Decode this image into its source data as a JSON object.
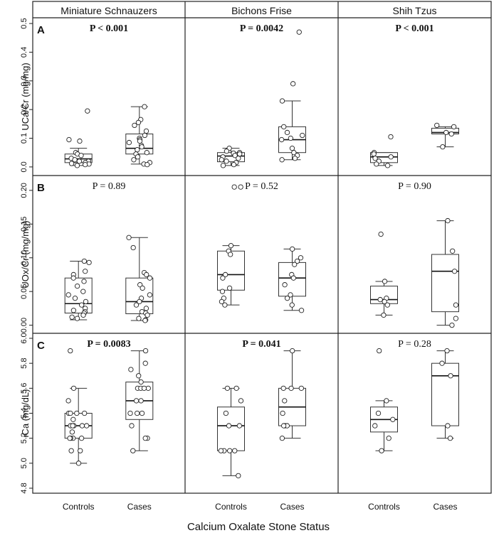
{
  "chart_data": {
    "type": "box",
    "xlabel": "Calcium Oxalate Stone Status",
    "columns": [
      "Miniature Schnauzers",
      "Bichons Frise",
      "Shih Tzus"
    ],
    "categories": [
      "Controls",
      "Cases"
    ],
    "rows": [
      {
        "letter": "A",
        "ylabel": "UCa/Cr (mg/mg)",
        "ylim": [
          -0.03,
          0.52
        ],
        "ticks": [
          0.0,
          0.1,
          0.2,
          0.3,
          0.4,
          0.5
        ],
        "tick_labels": [
          "0.0",
          "0.1",
          "0.2",
          "0.3",
          "0.4",
          "0.5"
        ],
        "panels": [
          {
            "p_label": "P < 0.001",
            "bold": true,
            "groups": [
              {
                "box": [
                  0.005,
                  0.015,
                  0.028,
                  0.045,
                  0.065
                ],
                "points": [
                  0.195,
                  0.095,
                  0.09,
                  0.05,
                  0.045,
                  0.04,
                  0.03,
                  0.025,
                  0.02,
                  0.02,
                  0.015,
                  0.012,
                  0.01,
                  0.008,
                  0.005
                ]
              },
              {
                "box": [
                  0.01,
                  0.045,
                  0.065,
                  0.115,
                  0.21
                ],
                "points": [
                  0.21,
                  0.165,
                  0.155,
                  0.145,
                  0.125,
                  0.11,
                  0.1,
                  0.095,
                  0.09,
                  0.085,
                  0.075,
                  0.07,
                  0.06,
                  0.05,
                  0.045,
                  0.035,
                  0.025,
                  0.015,
                  0.01,
                  0.008
                ]
              }
            ]
          },
          {
            "p_label": "P = 0.0042",
            "bold": true,
            "groups": [
              {
                "box": [
                  0.005,
                  0.018,
                  0.038,
                  0.05,
                  0.065
                ],
                "points": [
                  0.065,
                  0.055,
                  0.05,
                  0.048,
                  0.045,
                  0.04,
                  0.035,
                  0.03,
                  0.025,
                  0.02,
                  0.015,
                  0.008,
                  0.005
                ]
              },
              {
                "box": [
                  0.025,
                  0.05,
                  0.095,
                  0.14,
                  0.23
                ],
                "points": [
                  0.47,
                  0.29,
                  0.23,
                  0.14,
                  0.12,
                  0.11,
                  0.1,
                  0.095,
                  0.065,
                  0.05,
                  0.04,
                  0.03,
                  0.025
                ]
              }
            ]
          },
          {
            "p_label": "P < 0.001",
            "bold": true,
            "groups": [
              {
                "box": [
                  0.005,
                  0.015,
                  0.035,
                  0.05,
                  0.05
                ],
                "points": [
                  0.105,
                  0.05,
                  0.045,
                  0.035,
                  0.03,
                  0.02,
                  0.01,
                  0.005
                ]
              },
              {
                "box": [
                  0.07,
                  0.115,
                  0.12,
                  0.135,
                  0.14
                ],
                "points": [
                  0.145,
                  0.14,
                  0.12,
                  0.115,
                  0.07
                ]
              }
            ]
          }
        ]
      },
      {
        "letter": "B",
        "ylabel": "UOx/Cr (mg/mg)",
        "ylim": [
          -0.012,
          0.222
        ],
        "ticks": [
          0.0,
          0.05,
          0.1,
          0.15,
          0.2
        ],
        "tick_labels": [
          "0.00",
          "0.05",
          "0.10",
          "0.15",
          "0.20"
        ],
        "panels": [
          {
            "p_label": "P = 0.89",
            "bold": false,
            "groups": [
              {
                "box": [
                  0.008,
                  0.018,
                  0.032,
                  0.07,
                  0.095
                ],
                "points": [
                  0.095,
                  0.093,
                  0.08,
                  0.075,
                  0.07,
                  0.065,
                  0.058,
                  0.05,
                  0.045,
                  0.04,
                  0.035,
                  0.03,
                  0.025,
                  0.022,
                  0.02,
                  0.018,
                  0.015,
                  0.012,
                  0.01
                ]
              },
              {
                "box": [
                  0.007,
                  0.017,
                  0.035,
                  0.07,
                  0.13
                ],
                "points": [
                  0.13,
                  0.115,
                  0.078,
                  0.075,
                  0.07,
                  0.06,
                  0.055,
                  0.045,
                  0.04,
                  0.035,
                  0.03,
                  0.025,
                  0.02,
                  0.018,
                  0.015,
                  0.01,
                  0.008,
                  0.007
                ]
              }
            ]
          },
          {
            "p_label": "P = 0.52",
            "bold": false,
            "groups": [
              {
                "box": [
                  0.03,
                  0.052,
                  0.075,
                  0.11,
                  0.118
                ],
                "points": [
                  0.205,
                  0.205,
                  0.118,
                  0.11,
                  0.105,
                  0.075,
                  0.07,
                  0.055,
                  0.05,
                  0.04,
                  0.035,
                  0.03
                ]
              },
              {
                "box": [
                  0.022,
                  0.043,
                  0.07,
                  0.093,
                  0.113
                ],
                "points": [
                  0.113,
                  0.1,
                  0.095,
                  0.09,
                  0.075,
                  0.07,
                  0.06,
                  0.045,
                  0.04,
                  0.03,
                  0.022
                ]
              }
            ]
          },
          {
            "p_label": "P = 0.90",
            "bold": false,
            "groups": [
              {
                "box": [
                  0.015,
                  0.032,
                  0.038,
                  0.058,
                  0.065
                ],
                "points": [
                  0.135,
                  0.065,
                  0.04,
                  0.038,
                  0.035,
                  0.03,
                  0.015
                ]
              },
              {
                "box": [
                  0.0,
                  0.02,
                  0.08,
                  0.105,
                  0.155
                ],
                "points": [
                  0.155,
                  0.11,
                  0.08,
                  0.03,
                  0.01,
                  0.0
                ]
              }
            ]
          }
        ]
      },
      {
        "letter": "C",
        "ylabel": "iCa (mg/dL)",
        "ylim": [
          4.76,
          6.04
        ],
        "ticks": [
          4.8,
          5.0,
          5.2,
          5.4,
          5.6,
          5.8,
          6.0
        ],
        "tick_labels": [
          "4.8",
          "5.0",
          "5.2",
          "5.4",
          "5.6",
          "5.8",
          "6.0"
        ],
        "panels": [
          {
            "p_label": "P = 0.0083",
            "bold": true,
            "groups": [
              {
                "box": [
                  5.0,
                  5.2,
                  5.3,
                  5.4,
                  5.6
                ],
                "points": [
                  5.9,
                  5.6,
                  5.5,
                  5.4,
                  5.4,
                  5.4,
                  5.4,
                  5.35,
                  5.3,
                  5.3,
                  5.3,
                  5.3,
                  5.3,
                  5.25,
                  5.2,
                  5.2,
                  5.2,
                  5.2,
                  5.1,
                  5.1,
                  5.0
                ]
              },
              {
                "box": [
                  5.1,
                  5.35,
                  5.5,
                  5.65,
                  5.9
                ],
                "points": [
                  5.9,
                  5.8,
                  5.75,
                  5.7,
                  5.65,
                  5.6,
                  5.6,
                  5.6,
                  5.6,
                  5.5,
                  5.5,
                  5.4,
                  5.4,
                  5.4,
                  5.3,
                  5.2,
                  5.2,
                  5.1
                ]
              }
            ]
          },
          {
            "p_label": "P = 0.041",
            "bold": true,
            "groups": [
              {
                "box": [
                  4.9,
                  5.1,
                  5.3,
                  5.45,
                  5.6
                ],
                "points": [
                  5.6,
                  5.6,
                  5.5,
                  5.4,
                  5.3,
                  5.3,
                  5.1,
                  5.1,
                  5.1,
                  5.1,
                  4.9
                ]
              },
              {
                "box": [
                  5.2,
                  5.3,
                  5.45,
                  5.6,
                  5.9
                ],
                "points": [
                  5.9,
                  5.6,
                  5.6,
                  5.6,
                  5.5,
                  5.4,
                  5.3,
                  5.3,
                  5.3,
                  5.2
                ]
              }
            ]
          },
          {
            "p_label": "P = 0.28",
            "bold": false,
            "groups": [
              {
                "box": [
                  5.1,
                  5.25,
                  5.35,
                  5.45,
                  5.5
                ],
                "points": [
                  5.9,
                  5.5,
                  5.4,
                  5.35,
                  5.3,
                  5.2,
                  5.1
                ]
              },
              {
                "box": [
                  5.2,
                  5.3,
                  5.7,
                  5.8,
                  5.9
                ],
                "points": [
                  5.9,
                  5.8,
                  5.7,
                  5.3,
                  5.2
                ]
              }
            ]
          }
        ]
      }
    ]
  }
}
